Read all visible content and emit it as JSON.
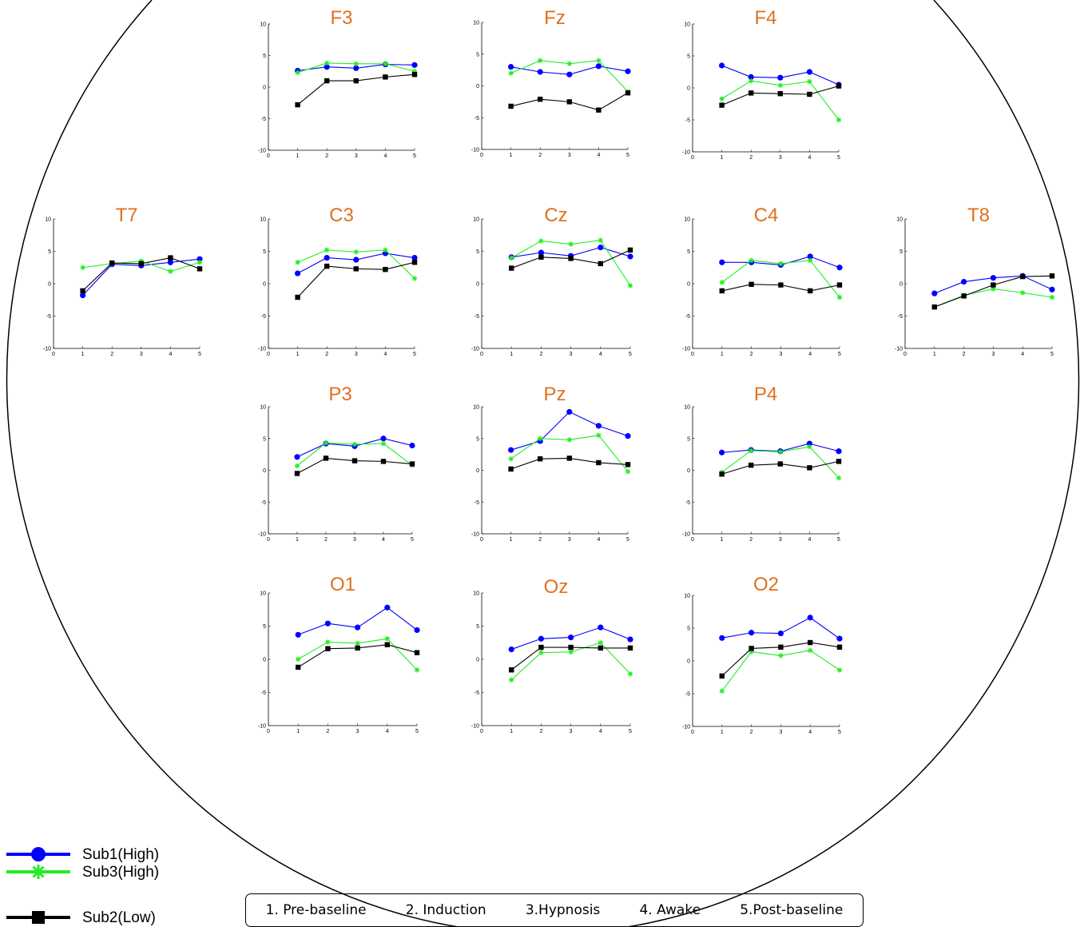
{
  "chart_data": {
    "type": "line",
    "layout": "scalp-topographic grid of small line charts (head outline)",
    "x": [
      1,
      2,
      3,
      4,
      5
    ],
    "xticks": [
      "0",
      "1",
      "2",
      "3",
      "4",
      "5"
    ],
    "yticks": [
      "10",
      "5",
      "0",
      "-5",
      "-10"
    ],
    "xlim": [
      0,
      5
    ],
    "ylim": [
      -10,
      10
    ],
    "grid": false,
    "series_styles": [
      {
        "name": "Sub1(High)",
        "color": "#0000ff",
        "marker": "circle"
      },
      {
        "name": "Sub3(High)",
        "color": "#22ee22",
        "marker": "asterisk"
      },
      {
        "name": "Sub2(Low)",
        "color": "#000000",
        "marker": "square"
      }
    ],
    "panels": [
      {
        "title": "F3",
        "series": [
          {
            "name": "Sub1(High)",
            "values": [
              2.6,
              3.2,
              3.0,
              3.6,
              3.5
            ]
          },
          {
            "name": "Sub3(High)",
            "values": [
              2.3,
              3.8,
              3.7,
              3.7,
              2.5
            ]
          },
          {
            "name": "Sub2(Low)",
            "values": [
              -2.8,
              1.0,
              1.0,
              1.6,
              2.0
            ]
          }
        ]
      },
      {
        "title": "Fz",
        "series": [
          {
            "name": "Sub1(High)",
            "values": [
              3.0,
              2.2,
              1.8,
              3.1,
              2.3
            ]
          },
          {
            "name": "Sub3(High)",
            "values": [
              2.0,
              4.0,
              3.5,
              4.0,
              -0.9
            ]
          },
          {
            "name": "Sub2(Low)",
            "values": [
              -3.2,
              -2.1,
              -2.5,
              -3.8,
              -1.1
            ]
          }
        ]
      },
      {
        "title": "F4",
        "series": [
          {
            "name": "Sub1(High)",
            "values": [
              3.5,
              1.7,
              1.6,
              2.5,
              0.5
            ]
          },
          {
            "name": "Sub3(High)",
            "values": [
              -1.7,
              1.1,
              0.4,
              1.0,
              -5.0
            ]
          },
          {
            "name": "Sub2(Low)",
            "values": [
              -2.7,
              -0.8,
              -0.9,
              -1.0,
              0.3
            ]
          }
        ]
      },
      {
        "title": "T7",
        "series": [
          {
            "name": "Sub1(High)",
            "values": [
              -1.8,
              3.0,
              2.8,
              3.3,
              3.8
            ]
          },
          {
            "name": "Sub3(High)",
            "values": [
              2.5,
              3.1,
              3.5,
              1.9,
              3.3
            ]
          },
          {
            "name": "Sub2(Low)",
            "values": [
              -1.1,
              3.2,
              3.1,
              4.0,
              2.3
            ]
          }
        ]
      },
      {
        "title": "C3",
        "series": [
          {
            "name": "Sub1(High)",
            "values": [
              1.6,
              4.0,
              3.7,
              4.7,
              4.0
            ]
          },
          {
            "name": "Sub3(High)",
            "values": [
              3.3,
              5.2,
              4.9,
              5.2,
              0.8
            ]
          },
          {
            "name": "Sub2(Low)",
            "values": [
              -2.1,
              2.7,
              2.3,
              2.2,
              3.3
            ]
          }
        ]
      },
      {
        "title": "Cz",
        "series": [
          {
            "name": "Sub1(High)",
            "values": [
              4.1,
              4.8,
              4.3,
              5.6,
              4.2
            ]
          },
          {
            "name": "Sub3(High)",
            "values": [
              4.0,
              6.6,
              6.1,
              6.7,
              -0.3
            ]
          },
          {
            "name": "Sub2(Low)",
            "values": [
              2.4,
              4.1,
              3.9,
              3.1,
              5.2
            ]
          }
        ]
      },
      {
        "title": "C4",
        "series": [
          {
            "name": "Sub1(High)",
            "values": [
              3.3,
              3.3,
              2.9,
              4.2,
              2.5
            ]
          },
          {
            "name": "Sub3(High)",
            "values": [
              0.2,
              3.6,
              3.1,
              3.6,
              -2.1
            ]
          },
          {
            "name": "Sub2(Low)",
            "values": [
              -1.1,
              -0.1,
              -0.2,
              -1.1,
              -0.2
            ]
          }
        ]
      },
      {
        "title": "T8",
        "series": [
          {
            "name": "Sub1(High)",
            "values": [
              -1.5,
              0.3,
              0.9,
              1.2,
              -0.9
            ]
          },
          {
            "name": "Sub3(High)",
            "values": [
              -3.6,
              -1.8,
              -0.8,
              -1.4,
              -2.1
            ]
          },
          {
            "name": "Sub2(Low)",
            "values": [
              -3.6,
              -1.9,
              -0.2,
              1.1,
              1.2
            ]
          }
        ]
      },
      {
        "title": "P3",
        "series": [
          {
            "name": "Sub1(High)",
            "values": [
              2.1,
              4.2,
              3.8,
              5.0,
              3.9
            ]
          },
          {
            "name": "Sub3(High)",
            "values": [
              0.7,
              4.3,
              4.1,
              4.2,
              0.8
            ]
          },
          {
            "name": "Sub2(Low)",
            "values": [
              -0.5,
              1.9,
              1.5,
              1.4,
              1.0
            ]
          }
        ]
      },
      {
        "title": "Pz",
        "series": [
          {
            "name": "Sub1(High)",
            "values": [
              3.2,
              4.6,
              9.2,
              7.0,
              5.4
            ]
          },
          {
            "name": "Sub3(High)",
            "values": [
              1.8,
              5.0,
              4.8,
              5.5,
              -0.2
            ]
          },
          {
            "name": "Sub2(Low)",
            "values": [
              0.2,
              1.8,
              1.9,
              1.2,
              0.9
            ]
          }
        ]
      },
      {
        "title": "P4",
        "series": [
          {
            "name": "Sub1(High)",
            "values": [
              2.8,
              3.2,
              3.0,
              4.2,
              3.0
            ]
          },
          {
            "name": "Sub3(High)",
            "values": [
              -0.3,
              3.1,
              2.9,
              3.7,
              -1.2
            ]
          },
          {
            "name": "Sub2(Low)",
            "values": [
              -0.6,
              0.8,
              1.0,
              0.4,
              1.4
            ]
          }
        ]
      },
      {
        "title": "O1",
        "series": [
          {
            "name": "Sub1(High)",
            "values": [
              3.7,
              5.4,
              4.8,
              7.8,
              4.4
            ]
          },
          {
            "name": "Sub3(High)",
            "values": [
              0.0,
              2.6,
              2.4,
              3.1,
              -1.6
            ]
          },
          {
            "name": "Sub2(Low)",
            "values": [
              -1.2,
              1.6,
              1.7,
              2.2,
              1.0
            ]
          }
        ]
      },
      {
        "title": "Oz",
        "series": [
          {
            "name": "Sub1(High)",
            "values": [
              1.5,
              3.1,
              3.3,
              4.8,
              3.0
            ]
          },
          {
            "name": "Sub3(High)",
            "values": [
              -3.1,
              1.0,
              1.1,
              2.5,
              -2.2
            ]
          },
          {
            "name": "Sub2(Low)",
            "values": [
              -1.6,
              1.8,
              1.8,
              1.7,
              1.7
            ]
          }
        ]
      },
      {
        "title": "O2",
        "series": [
          {
            "name": "Sub1(High)",
            "values": [
              3.5,
              4.3,
              4.2,
              6.6,
              3.4
            ]
          },
          {
            "name": "Sub3(High)",
            "values": [
              -4.6,
              1.4,
              0.8,
              1.6,
              -1.4
            ]
          },
          {
            "name": "Sub2(Low)",
            "values": [
              -2.3,
              1.9,
              2.1,
              2.8,
              2.1
            ]
          }
        ]
      }
    ],
    "legend": {
      "placement": "bottom-left",
      "entries": [
        {
          "label": "Sub1(High)",
          "color": "#0000ff",
          "marker": "circle"
        },
        {
          "label": "Sub3(High)",
          "color": "#22ee22",
          "marker": "asterisk"
        },
        {
          "label": "Sub2(Low)",
          "color": "#000000",
          "marker": "square"
        }
      ]
    },
    "phase_labels": [
      "1. Pre-baseline",
      "2. Induction",
      "3.Hypnosis",
      "4. Awake",
      "5.Post-baseline"
    ]
  }
}
